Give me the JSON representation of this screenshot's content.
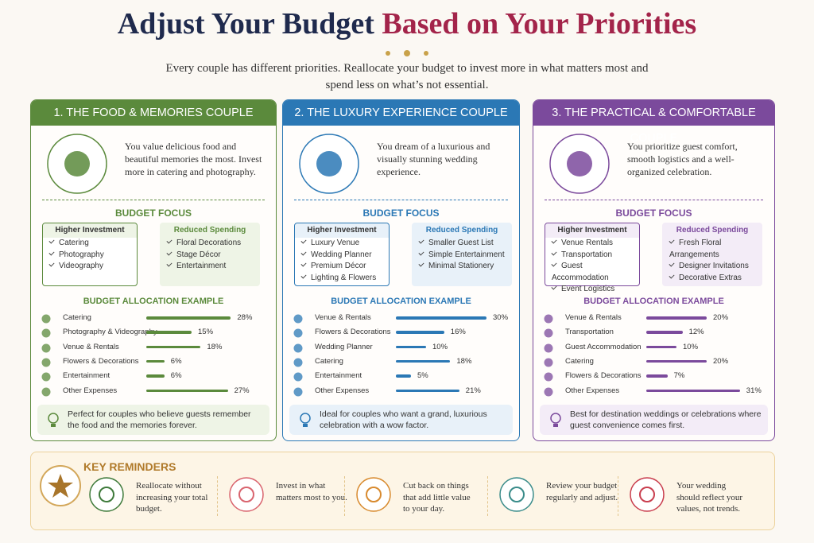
{
  "header": {
    "title_part1": "Adjust Your Budget",
    "title_part2": "Based on Your Priorities",
    "subtitle": "Every couple has different priorities. Reallocate your budget to invest more in what matters most and spend less on what’s not essential."
  },
  "cards": [
    {
      "title": "1. THE FOOD & MEMORIES COUPLE",
      "color": "#5b8a3c",
      "tint": "#eef4e6",
      "description": "You value delicious food and beautiful memories the most. Invest more in catering and photography.",
      "budget_focus_label": "BUDGET FOCUS",
      "higher_label": "Higher Investment",
      "higher_items": [
        "Catering",
        "Photography",
        "Videography"
      ],
      "reduced_label": "Reduced Spending",
      "reduced_items": [
        "Floral Decorations",
        "Stage Décor",
        "Entertainment"
      ],
      "allocation_label": "BUDGET ALLOCATION EXAMPLE",
      "allocation": {
        "categories": [
          "Catering",
          "Photography & Videography",
          "Venue & Rentals",
          "Flowers & Decorations",
          "Entertainment",
          "Other Expenses"
        ],
        "values": [
          28,
          15,
          18,
          6,
          6,
          27
        ],
        "value_labels": [
          "28%",
          "15%",
          "18%",
          "6%",
          "6%",
          "27%"
        ]
      },
      "note": "Perfect for couples who believe guests remember the food and the memories forever."
    },
    {
      "title": "2. THE LUXURY EXPERIENCE COUPLE",
      "color": "#2b78b5",
      "tint": "#e8f1f9",
      "description": "You dream of a luxurious and visually stunning wedding experience.",
      "budget_focus_label": "BUDGET FOCUS",
      "higher_label": "Higher Investment",
      "higher_items": [
        "Luxury Venue",
        "Wedding Planner",
        "Premium Décor",
        "Lighting & Flowers"
      ],
      "reduced_label": "Reduced Spending",
      "reduced_items": [
        "Smaller Guest List",
        "Simple Entertainment",
        "Minimal Stationery"
      ],
      "allocation_label": "BUDGET ALLOCATION EXAMPLE",
      "allocation": {
        "categories": [
          "Venue & Rentals",
          "Flowers & Decorations",
          "Wedding Planner",
          "Catering",
          "Entertainment",
          "Other Expenses"
        ],
        "values": [
          30,
          16,
          10,
          18,
          5,
          21
        ],
        "value_labels": [
          "30%",
          "16%",
          "10%",
          "18%",
          "5%",
          "21%"
        ]
      },
      "note": "Ideal for couples who want a grand, luxurious celebration with a wow factor."
    },
    {
      "title": "3. THE PRACTICAL & COMFORTABLE COUPLE",
      "color": "#7b4a9c",
      "tint": "#f3ecf7",
      "description": "You prioritize guest comfort, smooth logistics and a well-organized celebration.",
      "budget_focus_label": "BUDGET FOCUS",
      "higher_label": "Higher Investment",
      "higher_items": [
        "Venue Rentals",
        "Transportation",
        "Guest Accommodation",
        "Event Logistics"
      ],
      "reduced_label": "Reduced Spending",
      "reduced_items": [
        "Fresh Floral Arrangements",
        "Designer Invitations",
        "Decorative Extras"
      ],
      "allocation_label": "BUDGET ALLOCATION EXAMPLE",
      "allocation": {
        "categories": [
          "Venue & Rentals",
          "Transportation",
          "Guest Accommodation",
          "Catering",
          "Flowers & Decorations",
          "Other Expenses"
        ],
        "values": [
          20,
          12,
          10,
          20,
          7,
          31
        ],
        "value_labels": [
          "20%",
          "12%",
          "10%",
          "20%",
          "7%",
          "31%"
        ]
      },
      "note": "Best for destination weddings or celebrations where guest convenience comes first."
    }
  ],
  "reminders": {
    "title": "KEY REMINDERS",
    "items": [
      "Reallocate without increasing your total budget.",
      "Invest in what matters most to you.",
      "Cut back on things that add little value to your day.",
      "Review your budget regularly and adjust.",
      "Your wedding should reflect your values, not trends."
    ]
  }
}
